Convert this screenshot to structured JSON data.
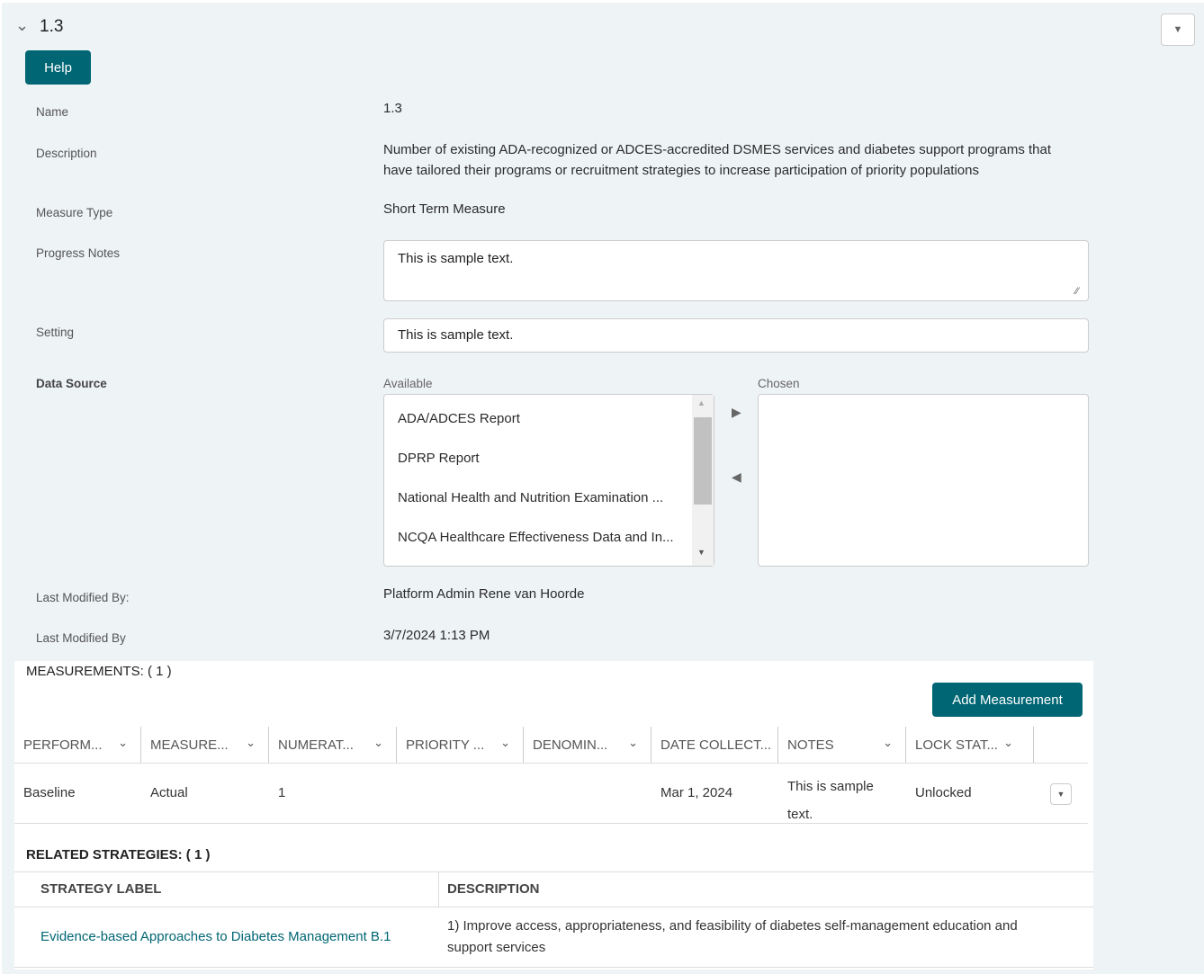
{
  "header": {
    "title": "1.3",
    "help_label": "Help"
  },
  "fields": {
    "name_label": "Name",
    "name_value": "1.3",
    "description_label": "Description",
    "description_value": "Number of existing ADA-recognized or ADCES-accredited DSMES services and diabetes support programs that have tailored their programs or recruitment strategies to increase participation of priority populations",
    "measure_type_label": "Measure Type",
    "measure_type_value": "Short Term Measure",
    "progress_notes_label": "Progress Notes",
    "progress_notes_value": "This is sample text.",
    "setting_label": "Setting",
    "setting_value": "This is sample text.",
    "data_source_label": "Data Source",
    "available_label": "Available",
    "chosen_label": "Chosen",
    "available_options": [
      "ADA/ADCES Report",
      "DPRP Report",
      "National Health and Nutrition Examination ...",
      "NCQA Healthcare Effectiveness Data and In..."
    ],
    "last_modified_by_label": "Last Modified By:",
    "last_modified_by_value": "Platform Admin Rene van Hoorde",
    "last_modified_date_label": "Last Modified By",
    "last_modified_date_value": "3/7/2024 1:13 PM"
  },
  "measurements": {
    "title": "MEASUREMENTS: ( 1 )",
    "add_label": "Add Measurement",
    "columns": [
      "PERFORM...",
      "MEASURE...",
      "NUMERAT...",
      "PRIORITY ...",
      "DENOMIN...",
      "DATE COLLECT...",
      "NOTES",
      "LOCK STAT..."
    ],
    "rows": [
      [
        "Baseline",
        "Actual",
        "1",
        "",
        "",
        "Mar 1, 2024",
        "This is sample text.",
        "Unlocked"
      ]
    ]
  },
  "strategies": {
    "title": "RELATED STRATEGIES: ( 1 )",
    "columns": [
      "STRATEGY LABEL",
      "DESCRIPTION"
    ],
    "rows": [
      [
        "Evidence-based Approaches to Diabetes Management B.1",
        "1) Improve access, appropriateness, and feasibility of diabetes self-management education and support services"
      ]
    ]
  },
  "colors": {
    "accent": "#006674",
    "link": "#006674",
    "background": "#eef3f6"
  }
}
